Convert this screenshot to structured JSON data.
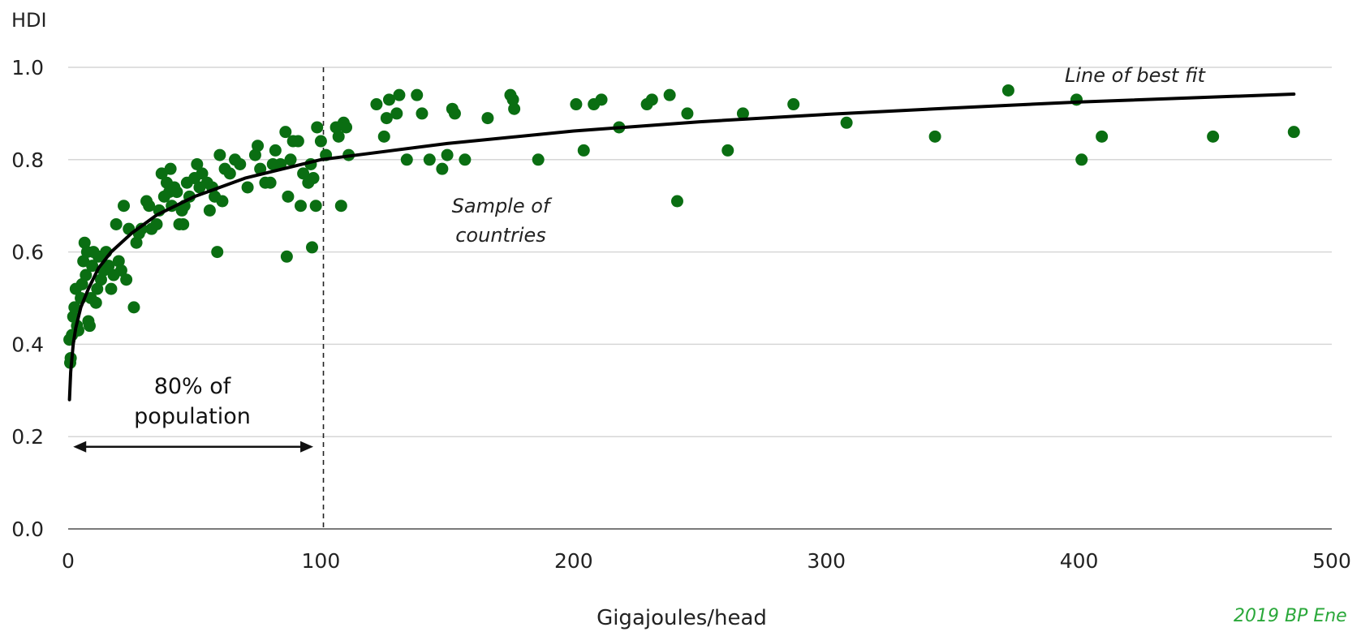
{
  "chart_data": {
    "type": "scatter",
    "title": "",
    "ylabel": "HDI",
    "xlabel": "Gigajoules/head",
    "xlim": [
      0,
      500
    ],
    "ylim": [
      0,
      1.0
    ],
    "x_ticks": [
      "0",
      "100",
      "200",
      "300",
      "400",
      "500"
    ],
    "y_ticks": [
      "0.0",
      "0.2",
      "0.4",
      "0.6",
      "0.8",
      "1.0"
    ],
    "grid": "horizontal",
    "series": [
      {
        "name": "Sample of countries",
        "color": "#0a6e12",
        "points": [
          [
            0.5,
            0.41
          ],
          [
            0.8,
            0.36
          ],
          [
            1,
            0.37
          ],
          [
            1.5,
            0.42
          ],
          [
            2,
            0.46
          ],
          [
            2.5,
            0.48
          ],
          [
            3,
            0.52
          ],
          [
            3.5,
            0.44
          ],
          [
            4,
            0.43
          ],
          [
            5,
            0.5
          ],
          [
            5.5,
            0.53
          ],
          [
            6,
            0.58
          ],
          [
            6.5,
            0.62
          ],
          [
            7,
            0.55
          ],
          [
            7.5,
            0.6
          ],
          [
            8,
            0.45
          ],
          [
            8.5,
            0.44
          ],
          [
            9,
            0.5
          ],
          [
            9.5,
            0.57
          ],
          [
            10,
            0.6
          ],
          [
            11,
            0.49
          ],
          [
            11.5,
            0.52
          ],
          [
            12,
            0.59
          ],
          [
            13,
            0.54
          ],
          [
            14,
            0.56
          ],
          [
            15,
            0.6
          ],
          [
            16,
            0.57
          ],
          [
            17,
            0.52
          ],
          [
            18,
            0.55
          ],
          [
            19,
            0.66
          ],
          [
            20,
            0.58
          ],
          [
            21,
            0.56
          ],
          [
            22,
            0.7
          ],
          [
            23,
            0.54
          ],
          [
            24,
            0.65
          ],
          [
            26,
            0.48
          ],
          [
            27,
            0.62
          ],
          [
            28,
            0.64
          ],
          [
            29,
            0.65
          ],
          [
            31,
            0.71
          ],
          [
            32,
            0.7
          ],
          [
            33,
            0.65
          ],
          [
            35,
            0.66
          ],
          [
            36,
            0.69
          ],
          [
            37,
            0.77
          ],
          [
            38,
            0.72
          ],
          [
            39,
            0.75
          ],
          [
            40,
            0.73
          ],
          [
            40.5,
            0.78
          ],
          [
            41,
            0.7
          ],
          [
            42,
            0.74
          ],
          [
            43,
            0.73
          ],
          [
            44,
            0.66
          ],
          [
            45,
            0.69
          ],
          [
            45.5,
            0.66
          ],
          [
            46,
            0.7
          ],
          [
            47,
            0.75
          ],
          [
            48,
            0.72
          ],
          [
            50,
            0.76
          ],
          [
            51,
            0.79
          ],
          [
            52,
            0.74
          ],
          [
            53,
            0.77
          ],
          [
            55,
            0.75
          ],
          [
            56,
            0.69
          ],
          [
            57,
            0.74
          ],
          [
            58,
            0.72
          ],
          [
            59,
            0.6
          ],
          [
            60,
            0.81
          ],
          [
            61,
            0.71
          ],
          [
            62,
            0.78
          ],
          [
            64,
            0.77
          ],
          [
            66,
            0.8
          ],
          [
            68,
            0.79
          ],
          [
            71,
            0.74
          ],
          [
            74,
            0.81
          ],
          [
            75,
            0.83
          ],
          [
            76,
            0.78
          ],
          [
            78,
            0.75
          ],
          [
            80,
            0.75
          ],
          [
            81,
            0.79
          ],
          [
            82,
            0.82
          ],
          [
            84,
            0.79
          ],
          [
            86,
            0.86
          ],
          [
            86.5,
            0.59
          ],
          [
            87,
            0.72
          ],
          [
            88,
            0.8
          ],
          [
            89,
            0.84
          ],
          [
            91,
            0.84
          ],
          [
            92,
            0.7
          ],
          [
            93,
            0.77
          ],
          [
            95,
            0.75
          ],
          [
            96,
            0.79
          ],
          [
            96.5,
            0.61
          ],
          [
            97,
            0.76
          ],
          [
            98,
            0.7
          ],
          [
            98.5,
            0.87
          ],
          [
            100,
            0.84
          ],
          [
            102,
            0.81
          ],
          [
            106,
            0.87
          ],
          [
            107,
            0.85
          ],
          [
            108,
            0.7
          ],
          [
            109,
            0.88
          ],
          [
            110,
            0.87
          ],
          [
            111,
            0.81
          ],
          [
            122,
            0.92
          ],
          [
            125,
            0.85
          ],
          [
            126,
            0.89
          ],
          [
            127,
            0.93
          ],
          [
            130,
            0.9
          ],
          [
            131,
            0.94
          ],
          [
            134,
            0.8
          ],
          [
            138,
            0.94
          ],
          [
            140,
            0.9
          ],
          [
            143,
            0.8
          ],
          [
            148,
            0.78
          ],
          [
            150,
            0.81
          ],
          [
            152,
            0.91
          ],
          [
            153,
            0.9
          ],
          [
            157,
            0.8
          ],
          [
            166,
            0.89
          ],
          [
            175,
            0.94
          ],
          [
            176,
            0.93
          ],
          [
            176.5,
            0.91
          ],
          [
            186,
            0.8
          ],
          [
            201,
            0.92
          ],
          [
            204,
            0.82
          ],
          [
            208,
            0.92
          ],
          [
            211,
            0.93
          ],
          [
            218,
            0.87
          ],
          [
            229,
            0.92
          ],
          [
            231,
            0.93
          ],
          [
            238,
            0.94
          ],
          [
            241,
            0.71
          ],
          [
            245,
            0.9
          ],
          [
            261,
            0.82
          ],
          [
            267,
            0.9
          ],
          [
            287,
            0.92
          ],
          [
            308,
            0.88
          ],
          [
            343,
            0.85
          ],
          [
            372,
            0.95
          ],
          [
            399,
            0.93
          ],
          [
            401,
            0.8
          ],
          [
            409,
            0.85
          ],
          [
            453,
            0.85
          ],
          [
            485,
            0.86
          ]
        ]
      }
    ],
    "fit_line": {
      "name": "Line of best fit",
      "type": "logarithmic",
      "points": [
        [
          0.5,
          0.28
        ],
        [
          1,
          0.34
        ],
        [
          2,
          0.4
        ],
        [
          3,
          0.435
        ],
        [
          5,
          0.48
        ],
        [
          8,
          0.52
        ],
        [
          12,
          0.565
        ],
        [
          17,
          0.6
        ],
        [
          25,
          0.64
        ],
        [
          35,
          0.68
        ],
        [
          50,
          0.72
        ],
        [
          70,
          0.76
        ],
        [
          100,
          0.8
        ],
        [
          150,
          0.835
        ],
        [
          200,
          0.862
        ],
        [
          250,
          0.882
        ],
        [
          300,
          0.898
        ],
        [
          350,
          0.912
        ],
        [
          400,
          0.925
        ],
        [
          485,
          0.942
        ]
      ]
    },
    "reference_line": {
      "x": 101
    },
    "annotations": {
      "best_fit": "Line of best fit",
      "sample_line1": "Sample of",
      "sample_line2": "countries",
      "population_line1": "80% of",
      "population_line2": "population",
      "range_start": 2,
      "range_end": 97
    },
    "source_fragment": "2019 BP Ene"
  }
}
